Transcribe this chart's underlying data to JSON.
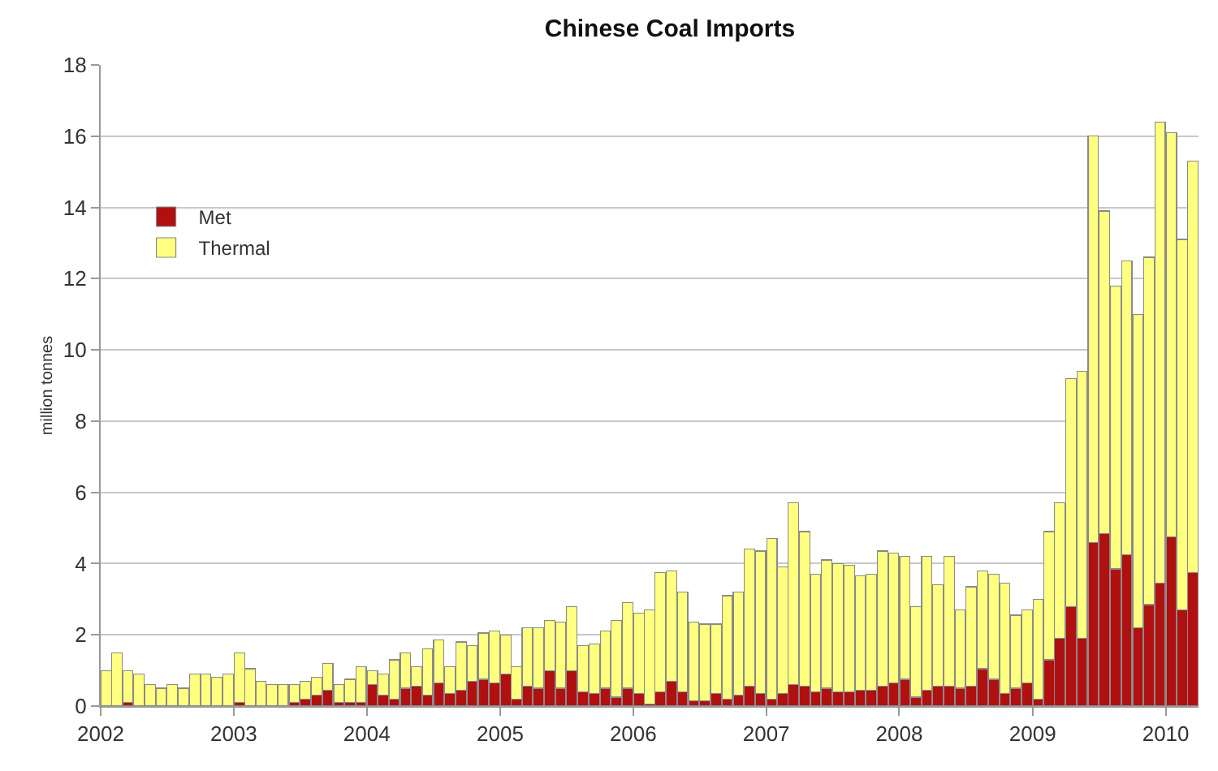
{
  "chart_data": {
    "type": "bar",
    "title": "Chinese Coal Imports",
    "ylabel": "million tonnes",
    "stacked": true,
    "x": [
      "2002-01",
      "2002-02",
      "2002-03",
      "2002-04",
      "2002-05",
      "2002-06",
      "2002-07",
      "2002-08",
      "2002-09",
      "2002-10",
      "2002-11",
      "2002-12",
      "2003-01",
      "2003-02",
      "2003-03",
      "2003-04",
      "2003-05",
      "2003-06",
      "2003-07",
      "2003-08",
      "2003-09",
      "2003-10",
      "2003-11",
      "2003-12",
      "2004-01",
      "2004-02",
      "2004-03",
      "2004-04",
      "2004-05",
      "2004-06",
      "2004-07",
      "2004-08",
      "2004-09",
      "2004-10",
      "2004-11",
      "2004-12",
      "2005-01",
      "2005-02",
      "2005-03",
      "2005-04",
      "2005-05",
      "2005-06",
      "2005-07",
      "2005-08",
      "2005-09",
      "2005-10",
      "2005-11",
      "2005-12",
      "2006-01",
      "2006-02",
      "2006-03",
      "2006-04",
      "2006-05",
      "2006-06",
      "2006-07",
      "2006-08",
      "2006-09",
      "2006-10",
      "2006-11",
      "2006-12",
      "2007-01",
      "2007-02",
      "2007-03",
      "2007-04",
      "2007-05",
      "2007-06",
      "2007-07",
      "2007-08",
      "2007-09",
      "2007-10",
      "2007-11",
      "2007-12",
      "2008-01",
      "2008-02",
      "2008-03",
      "2008-04",
      "2008-05",
      "2008-06",
      "2008-07",
      "2008-08",
      "2008-09",
      "2008-10",
      "2008-11",
      "2008-12",
      "2009-01",
      "2009-02",
      "2009-03",
      "2009-04",
      "2009-05",
      "2009-06",
      "2009-07",
      "2009-08",
      "2009-09",
      "2009-10",
      "2009-11",
      "2009-12",
      "2010-01",
      "2010-02",
      "2010-03"
    ],
    "series": [
      {
        "name": "Met",
        "color": "#b01010",
        "values": [
          0,
          0,
          0.1,
          0,
          0,
          0,
          0,
          0,
          0,
          0,
          0,
          0,
          0.1,
          0,
          0,
          0,
          0,
          0.1,
          0.2,
          0.3,
          0.45,
          0.1,
          0.1,
          0.1,
          0.6,
          0.3,
          0.2,
          0.5,
          0.55,
          0.3,
          0.65,
          0.35,
          0.45,
          0.7,
          0.75,
          0.65,
          0.9,
          0.2,
          0.55,
          0.5,
          1.0,
          0.5,
          1.0,
          0.4,
          0.35,
          0.5,
          0.25,
          0.5,
          0.35,
          0.05,
          0.4,
          0.7,
          0.4,
          0.15,
          0.15,
          0.35,
          0.2,
          0.3,
          0.55,
          0.35,
          0.2,
          0.35,
          0.6,
          0.55,
          0.4,
          0.5,
          0.4,
          0.4,
          0.45,
          0.45,
          0.55,
          0.65,
          0.75,
          0.25,
          0.45,
          0.55,
          0.55,
          0.5,
          0.55,
          1.05,
          0.75,
          0.35,
          0.5,
          0.65,
          0.2,
          1.3,
          1.9,
          2.8,
          1.9,
          4.6,
          4.85,
          3.85,
          4.25,
          2.2,
          2.85,
          3.45,
          4.75,
          2.7,
          3.75
        ]
      },
      {
        "name": "Thermal",
        "color": "#ffff80",
        "values": [
          1.0,
          1.5,
          0.9,
          0.9,
          0.6,
          0.5,
          0.6,
          0.5,
          0.9,
          0.9,
          0.8,
          0.9,
          1.4,
          1.05,
          0.7,
          0.6,
          0.6,
          0.5,
          0.5,
          0.5,
          0.75,
          0.5,
          0.65,
          1.0,
          0.4,
          0.6,
          1.1,
          1.0,
          0.55,
          1.3,
          1.2,
          0.75,
          1.35,
          1.0,
          1.3,
          1.45,
          1.1,
          0.9,
          1.65,
          1.7,
          1.4,
          1.85,
          1.8,
          1.3,
          1.4,
          1.6,
          2.15,
          2.4,
          2.25,
          2.65,
          3.35,
          3.1,
          2.8,
          2.2,
          2.15,
          1.95,
          2.9,
          2.9,
          3.85,
          4.0,
          4.5,
          3.55,
          5.1,
          4.35,
          3.3,
          3.6,
          3.6,
          3.55,
          3.2,
          3.25,
          3.8,
          3.65,
          3.45,
          2.55,
          3.75,
          2.85,
          3.65,
          2.2,
          2.8,
          2.75,
          2.95,
          3.1,
          2.05,
          2.05,
          2.8,
          3.6,
          3.8,
          6.4,
          7.5,
          11.4,
          9.05,
          7.95,
          8.25,
          8.8,
          9.75,
          12.95,
          11.35,
          10.4,
          11.55
        ]
      }
    ],
    "xlim": [
      "2002-01",
      "2010-04"
    ],
    "xticks": [
      "2002",
      "2003",
      "2004",
      "2005",
      "2006",
      "2007",
      "2008",
      "2009",
      "2010"
    ],
    "ylim": [
      0,
      18
    ],
    "yticks": [
      0,
      2,
      4,
      6,
      8,
      10,
      12,
      14,
      16,
      18
    ],
    "grid": "y",
    "legend": "top left"
  }
}
